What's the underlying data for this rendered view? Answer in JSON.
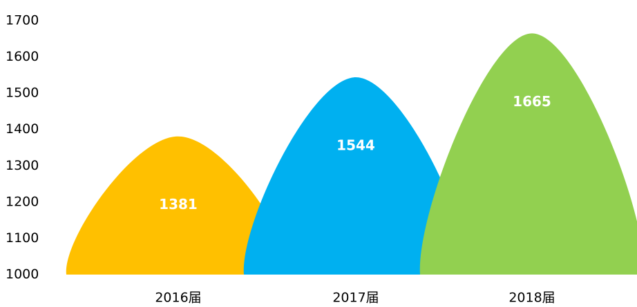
{
  "chart_data": {
    "type": "peak",
    "categories": [
      "2016届",
      "2017届",
      "2018届"
    ],
    "values": [
      1381,
      1544,
      1665
    ],
    "colors": [
      "#FFC000",
      "#00B0F0",
      "#92D050"
    ],
    "ylim": [
      1000,
      1700
    ],
    "yticks": [
      1000,
      1100,
      1200,
      1300,
      1400,
      1500,
      1600,
      1700
    ],
    "grid": false
  }
}
